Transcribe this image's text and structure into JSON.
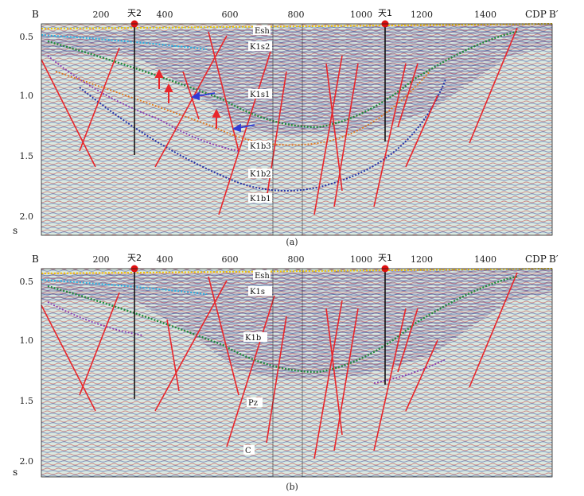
{
  "panels": [
    {
      "id": "a",
      "caption": "(a)",
      "left_label": "B",
      "right_label": "B′",
      "cdp_label": "CDP",
      "time_unit": "s",
      "cdp_ticks": [
        "200",
        "400",
        "600",
        "800",
        "1000",
        "1200",
        "1400"
      ],
      "time_ticks": [
        "0.5",
        "1.0",
        "1.5",
        "2.0"
      ],
      "wells": [
        "天2",
        "天1"
      ],
      "horizons": [
        "Esh",
        "K1s2",
        "K1s1",
        "K1b3",
        "K1b2",
        "K1b1"
      ],
      "colors": {
        "fault": "#e8262b",
        "well": "#e01010",
        "horizon_label_bg": "#ffffff"
      }
    },
    {
      "id": "b",
      "caption": "(b)",
      "left_label": "B",
      "right_label": "B′",
      "cdp_label": "CDP",
      "time_unit": "s",
      "cdp_ticks": [
        "200",
        "400",
        "600",
        "800",
        "1000",
        "1200",
        "1400"
      ],
      "time_ticks": [
        "0.5",
        "1.0",
        "1.5",
        "2.0"
      ],
      "wells": [
        "天2",
        "天1"
      ],
      "horizons": [
        "Esh",
        "K1s",
        "K1b",
        "Pz",
        "C"
      ],
      "colors": {
        "fault": "#e8262b",
        "well": "#e01010",
        "horizon_label_bg": "#ffffff"
      }
    }
  ]
}
